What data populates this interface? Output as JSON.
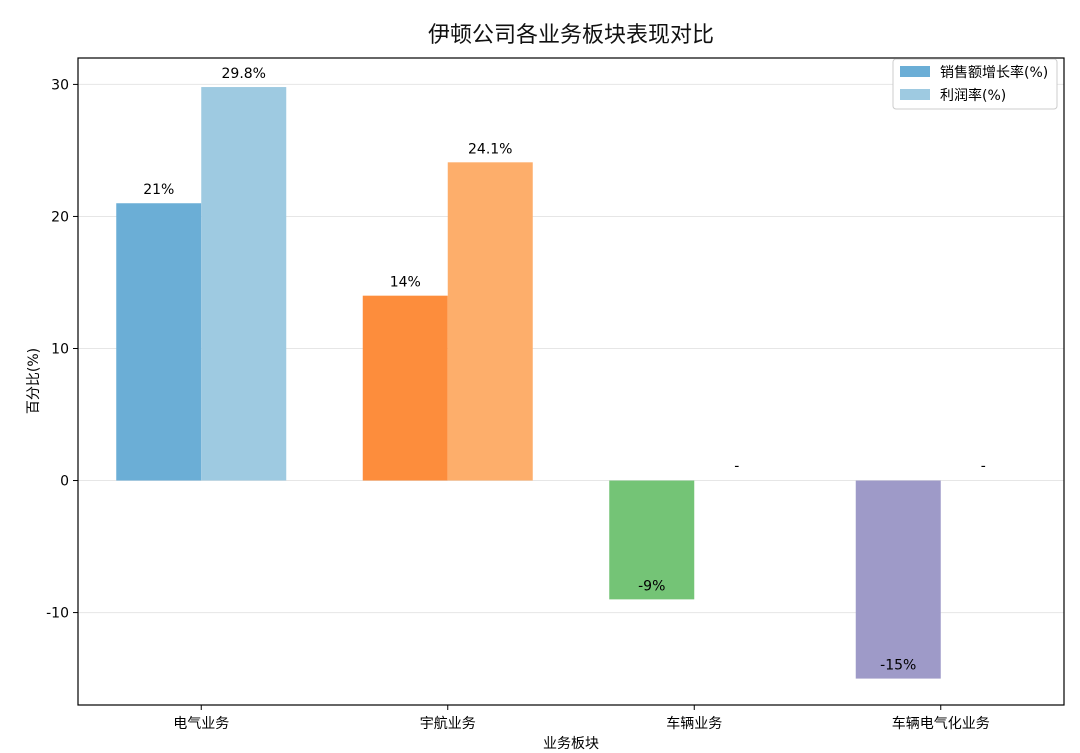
{
  "chart_data": {
    "type": "bar",
    "title": "伊顿公司各业务板块表现对比",
    "xlabel": "业务板块",
    "ylabel": "百分比(%)",
    "categories": [
      "电气业务",
      "宇航业务",
      "车辆业务",
      "车辆电气化业务"
    ],
    "series": [
      {
        "name": "销售额增长率(%)",
        "values": [
          21,
          14,
          -9,
          -15
        ],
        "labels": [
          "21%",
          "14%",
          "-9%",
          "-15%"
        ],
        "colors": [
          "#6baed6",
          "#fd8d3c",
          "#74c476",
          "#9e9ac8"
        ],
        "legend_color": "#6baed6"
      },
      {
        "name": "利润率(%)",
        "values": [
          29.8,
          24.1,
          null,
          null
        ],
        "labels": [
          "29.8%",
          "24.1%",
          "-",
          "-"
        ],
        "colors": [
          "#9ecae1",
          "#fdae6b",
          "#a1d99b",
          "#bcbddc"
        ],
        "legend_color": "#9ecae1"
      }
    ],
    "ylim": [
      -17,
      32
    ],
    "yticks": [
      -10,
      0,
      10,
      20,
      30
    ],
    "grid": true,
    "legend_position": "top-right"
  }
}
